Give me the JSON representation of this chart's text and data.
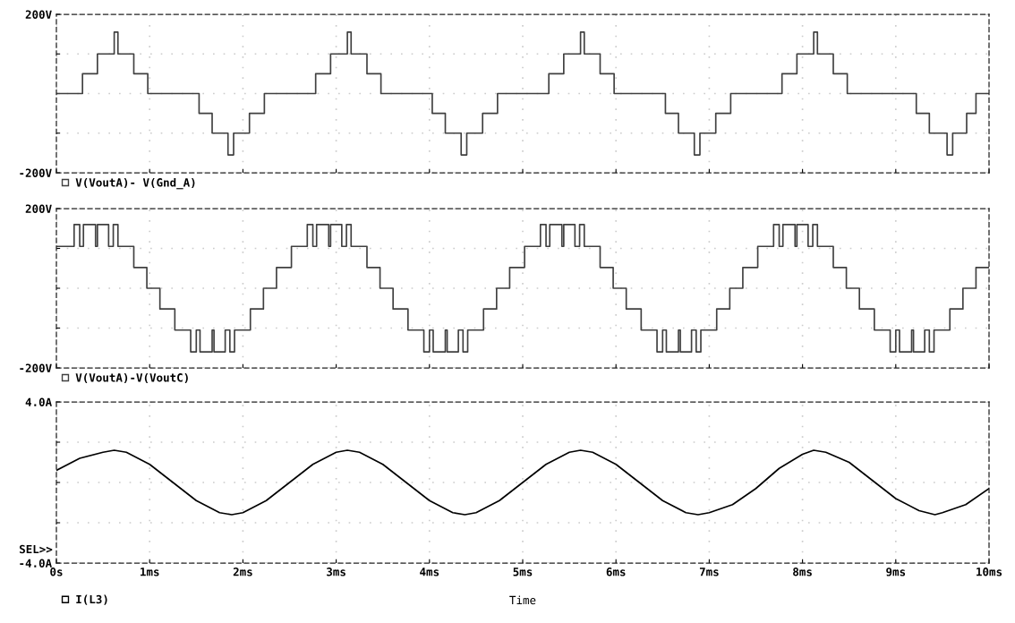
{
  "chart_data": [
    {
      "type": "step",
      "tick_labels": "y",
      "legend": "bottom left",
      "grid": true,
      "line_style": "solid",
      "xlim": [
        0,
        10
      ],
      "xticks": [
        {
          "value": 0,
          "label": null
        },
        {
          "value": 1,
          "label": null
        },
        {
          "value": 2,
          "label": null
        },
        {
          "value": 3,
          "label": null
        },
        {
          "value": 4,
          "label": null
        },
        {
          "value": 5,
          "label": null
        },
        {
          "value": 6,
          "label": null
        },
        {
          "value": 7,
          "label": null
        },
        {
          "value": 8,
          "label": null
        },
        {
          "value": 9,
          "label": null
        },
        {
          "value": 10,
          "label": null
        }
      ],
      "ylim": [
        -200,
        200
      ],
      "yticks": [
        {
          "value": -200,
          "label": "-200V"
        },
        {
          "value": -100,
          "label": null
        },
        {
          "value": 0,
          "label": null
        },
        {
          "value": 100,
          "label": null
        },
        {
          "value": 200,
          "label": "200V"
        }
      ],
      "series": [
        {
          "name": "V(VoutA)- V(Gnd_A)",
          "color": "#404040",
          "x": [
            0,
            0.28,
            0.44,
            0.62,
            0.66,
            0.83,
            0.98,
            1.53,
            1.67,
            1.84,
            1.9,
            2.07,
            2.23,
            2.78,
            2.94,
            3.12,
            3.16,
            3.33,
            3.48,
            4.03,
            4.17,
            4.34,
            4.4,
            4.57,
            4.73,
            5.28,
            5.44,
            5.62,
            5.66,
            5.83,
            5.98,
            6.53,
            6.67,
            6.84,
            6.9,
            7.07,
            7.23,
            7.78,
            7.94,
            8.12,
            8.16,
            8.33,
            8.48,
            9.22,
            9.36,
            9.55,
            9.61,
            9.76,
            9.86,
            10
          ],
          "values": [
            0,
            50,
            100,
            155,
            100,
            50,
            0,
            -50,
            -100,
            -155,
            -100,
            -50,
            0,
            50,
            100,
            155,
            100,
            50,
            0,
            -50,
            -100,
            -155,
            -100,
            -50,
            0,
            50,
            100,
            155,
            100,
            50,
            0,
            -50,
            -100,
            -155,
            -100,
            -50,
            0,
            50,
            100,
            155,
            100,
            50,
            0,
            -50,
            -100,
            -155,
            -100,
            -50,
            0,
            0
          ]
        }
      ]
    },
    {
      "type": "step",
      "tick_labels": "y",
      "legend": "bottom left",
      "grid": true,
      "line_style": "solid",
      "xlim": [
        0,
        10
      ],
      "xticks": [
        {
          "value": 0,
          "label": null
        },
        {
          "value": 1,
          "label": null
        },
        {
          "value": 2,
          "label": null
        },
        {
          "value": 3,
          "label": null
        },
        {
          "value": 4,
          "label": null
        },
        {
          "value": 5,
          "label": null
        },
        {
          "value": 6,
          "label": null
        },
        {
          "value": 7,
          "label": null
        },
        {
          "value": 8,
          "label": null
        },
        {
          "value": 9,
          "label": null
        },
        {
          "value": 10,
          "label": null
        }
      ],
      "ylim": [
        -200,
        200
      ],
      "yticks": [
        {
          "value": -200,
          "label": "-200V"
        },
        {
          "value": -100,
          "label": null
        },
        {
          "value": 0,
          "label": null
        },
        {
          "value": 100,
          "label": null
        },
        {
          "value": 200,
          "label": "200V"
        }
      ],
      "series": [
        {
          "name": "V(VoutA)-V(VoutC)",
          "color": "#404040",
          "x": [
            0,
            0.19,
            0.25,
            0.29,
            0.42,
            0.44,
            0.56,
            0.61,
            0.66,
            0.83,
            0.97,
            1.11,
            1.27,
            1.44,
            1.5,
            1.54,
            1.67,
            1.69,
            1.81,
            1.86,
            1.91,
            2.08,
            2.22,
            2.36,
            2.52,
            2.69,
            2.75,
            2.79,
            2.92,
            2.94,
            3.06,
            3.11,
            3.16,
            3.33,
            3.47,
            3.61,
            3.77,
            3.94,
            4.0,
            4.04,
            4.17,
            4.19,
            4.31,
            4.36,
            4.41,
            4.58,
            4.72,
            4.86,
            5.02,
            5.19,
            5.25,
            5.29,
            5.42,
            5.44,
            5.56,
            5.61,
            5.66,
            5.83,
            5.97,
            6.11,
            6.27,
            6.44,
            6.5,
            6.54,
            6.67,
            6.69,
            6.81,
            6.86,
            6.91,
            7.08,
            7.22,
            7.36,
            7.52,
            7.69,
            7.75,
            7.79,
            7.92,
            7.94,
            8.06,
            8.11,
            8.16,
            8.33,
            8.47,
            8.61,
            8.77,
            8.94,
            9.0,
            9.04,
            9.17,
            9.19,
            9.31,
            9.36,
            9.41,
            9.58,
            9.72,
            9.86,
            10
          ],
          "values": [
            105,
            160,
            105,
            160,
            105,
            160,
            105,
            160,
            105,
            52,
            0,
            -52,
            -105,
            -160,
            -105,
            -160,
            -105,
            -160,
            -105,
            -160,
            -105,
            -52,
            0,
            52,
            105,
            160,
            105,
            160,
            105,
            160,
            105,
            160,
            105,
            52,
            0,
            -52,
            -105,
            -160,
            -105,
            -160,
            -105,
            -160,
            -105,
            -160,
            -105,
            -52,
            0,
            52,
            105,
            160,
            105,
            160,
            105,
            160,
            105,
            160,
            105,
            52,
            0,
            -52,
            -105,
            -160,
            -105,
            -160,
            -105,
            -160,
            -105,
            -160,
            -105,
            -52,
            0,
            52,
            105,
            160,
            105,
            160,
            105,
            160,
            105,
            160,
            105,
            52,
            0,
            -52,
            -105,
            -160,
            -105,
            -160,
            -105,
            -160,
            -105,
            -160,
            -105,
            -52,
            0,
            52,
            52
          ]
        }
      ]
    },
    {
      "type": "line",
      "legend": "bottom left",
      "grid": true,
      "line_style": "solid",
      "xlabel": "Time",
      "annotations": [
        "SEL>>"
      ],
      "xlim": [
        0,
        10
      ],
      "xticks": [
        {
          "value": 0,
          "label": "0s"
        },
        {
          "value": 1,
          "label": "1ms"
        },
        {
          "value": 2,
          "label": "2ms"
        },
        {
          "value": 3,
          "label": "3ms"
        },
        {
          "value": 4,
          "label": "4ms"
        },
        {
          "value": 5,
          "label": "5ms"
        },
        {
          "value": 6,
          "label": "6ms"
        },
        {
          "value": 7,
          "label": "7ms"
        },
        {
          "value": 8,
          "label": "8ms"
        },
        {
          "value": 9,
          "label": "9ms"
        },
        {
          "value": 10,
          "label": "10ms"
        }
      ],
      "ylim": [
        -4,
        4
      ],
      "yticks": [
        {
          "value": -4,
          "label": "-4.0A"
        },
        {
          "value": -2,
          "label": null
        },
        {
          "value": 0,
          "label": null
        },
        {
          "value": 2,
          "label": null
        },
        {
          "value": 4,
          "label": "4.0A"
        }
      ],
      "series": [
        {
          "name": "I(L3)",
          "color": "#000000",
          "x": [
            0,
            0.25,
            0.5,
            0.62,
            0.75,
            1.0,
            1.25,
            1.5,
            1.75,
            1.88,
            2.0,
            2.25,
            2.5,
            2.75,
            3.0,
            3.12,
            3.25,
            3.5,
            3.75,
            4.0,
            4.25,
            4.38,
            4.5,
            4.75,
            5.0,
            5.25,
            5.5,
            5.62,
            5.75,
            6.0,
            6.25,
            6.5,
            6.75,
            6.88,
            7.0,
            7.25,
            7.5,
            7.75,
            8.0,
            8.12,
            8.25,
            8.5,
            8.75,
            9.0,
            9.25,
            9.42,
            9.5,
            9.75,
            10
          ],
          "values": [
            0.6,
            1.2,
            1.5,
            1.6,
            1.5,
            0.9,
            0.0,
            -0.9,
            -1.5,
            -1.6,
            -1.5,
            -0.9,
            0.0,
            0.9,
            1.5,
            1.6,
            1.5,
            0.9,
            0.0,
            -0.9,
            -1.5,
            -1.6,
            -1.5,
            -0.9,
            0.0,
            0.9,
            1.5,
            1.6,
            1.5,
            0.9,
            0.0,
            -0.9,
            -1.5,
            -1.6,
            -1.5,
            -1.1,
            -0.3,
            0.7,
            1.4,
            1.6,
            1.5,
            1.0,
            0.1,
            -0.8,
            -1.4,
            -1.6,
            -1.5,
            -1.1,
            -0.3
          ]
        }
      ]
    }
  ]
}
